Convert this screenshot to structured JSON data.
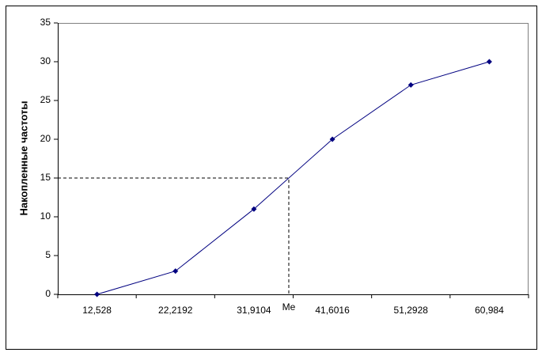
{
  "chart_data": {
    "type": "line",
    "y_label": "Накопленные частоты",
    "categories": [
      "12,528",
      "22,2192",
      "31,9104",
      "41,6016",
      "51,2928",
      "60,984"
    ],
    "series": [
      {
        "color": "#000080",
        "values": [
          0,
          3,
          11,
          20,
          27,
          30
        ]
      }
    ],
    "ylim": [
      0,
      35
    ],
    "yticks": [
      0,
      5,
      10,
      15,
      20,
      25,
      30,
      35
    ],
    "median": {
      "label": "Me",
      "value": 15
    },
    "grid": false
  }
}
